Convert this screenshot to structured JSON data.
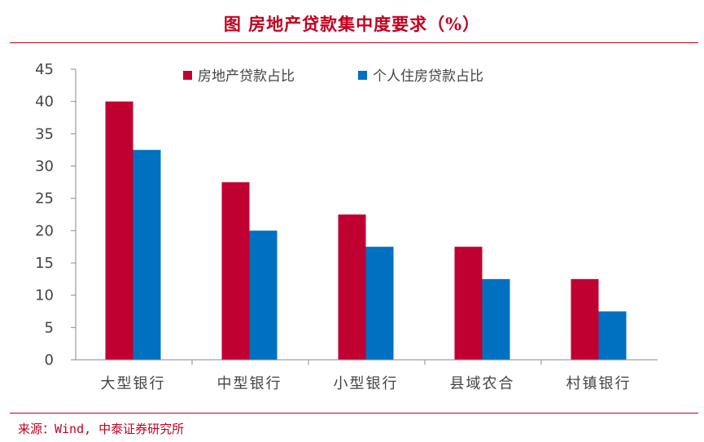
{
  "header": {
    "title": "图 房地产贷款集中度要求（%）"
  },
  "footer": {
    "source": "来源：Wind, 中泰证券研究所"
  },
  "colors": {
    "accent": "#c00020",
    "series1": "#c00030",
    "series2": "#0070c0",
    "axis": "#8a8a8a",
    "text": "#444444"
  },
  "chart_data": {
    "type": "bar",
    "categories": [
      "大型银行",
      "中型银行",
      "小型银行",
      "县域农合",
      "村镇银行"
    ],
    "series": [
      {
        "name": "房地产贷款占比",
        "values": [
          40,
          27.5,
          22.5,
          17.5,
          12.5
        ],
        "color": "#c00030"
      },
      {
        "name": "个人住房贷款占比",
        "values": [
          32.5,
          20,
          17.5,
          12.5,
          7.5
        ],
        "color": "#0070c0"
      }
    ],
    "yticks": [
      "0",
      "5",
      "10",
      "15",
      "20",
      "25",
      "30",
      "35",
      "40",
      "45"
    ],
    "ylim": [
      0,
      45
    ],
    "grid": false,
    "legend_position": "top-center"
  }
}
